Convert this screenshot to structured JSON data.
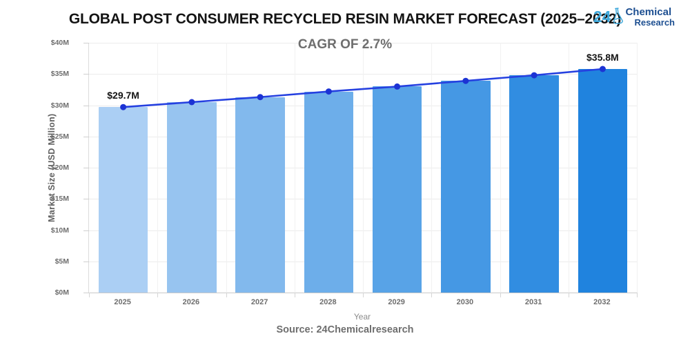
{
  "header": {
    "title": "GLOBAL POST CONSUMER RECYCLED RESIN MARKET FORECAST (2025–2032)",
    "subtitle": "CAGR OF 2.7%"
  },
  "logo": {
    "number": "24",
    "line1": "Chemical",
    "line2": "Research",
    "accent_color": "#3fa9dc",
    "text_color": "#1d4f91"
  },
  "footer": {
    "source": "Source: 24Chemicalresearch"
  },
  "chart_data": {
    "type": "bar",
    "overlay": "line",
    "title": "GLOBAL POST CONSUMER RECYCLED RESIN MARKET FORECAST (2025–2032)",
    "subtitle": "CAGR OF 2.7%",
    "categories": [
      "2025",
      "2026",
      "2027",
      "2028",
      "2029",
      "2030",
      "2031",
      "2032"
    ],
    "values": [
      29.7,
      30.5,
      31.3,
      32.2,
      33.0,
      33.9,
      34.8,
      35.8
    ],
    "xlabel": "Year",
    "ylabel": "Market Size (USD Million)",
    "ylim": [
      0,
      40
    ],
    "ytick_values": [
      0,
      5,
      10,
      15,
      20,
      25,
      30,
      35,
      40
    ],
    "ytick_labels": [
      "$0M",
      "$5M",
      "$10M",
      "$15M",
      "$20M",
      "$25M",
      "$30M",
      "$35M",
      "$40M"
    ],
    "bar_colors": [
      "#abcff4",
      "#97c4f0",
      "#82b9ed",
      "#6daeea",
      "#58a3e7",
      "#4598e4",
      "#318de1",
      "#2083de"
    ],
    "line_color": "#2540e0",
    "dot_color": "#1c33d4",
    "annotations": [
      {
        "index": 0,
        "text": "$29.7M"
      },
      {
        "index": 7,
        "text": "$35.8M"
      }
    ],
    "grid": true,
    "legend": "none"
  }
}
